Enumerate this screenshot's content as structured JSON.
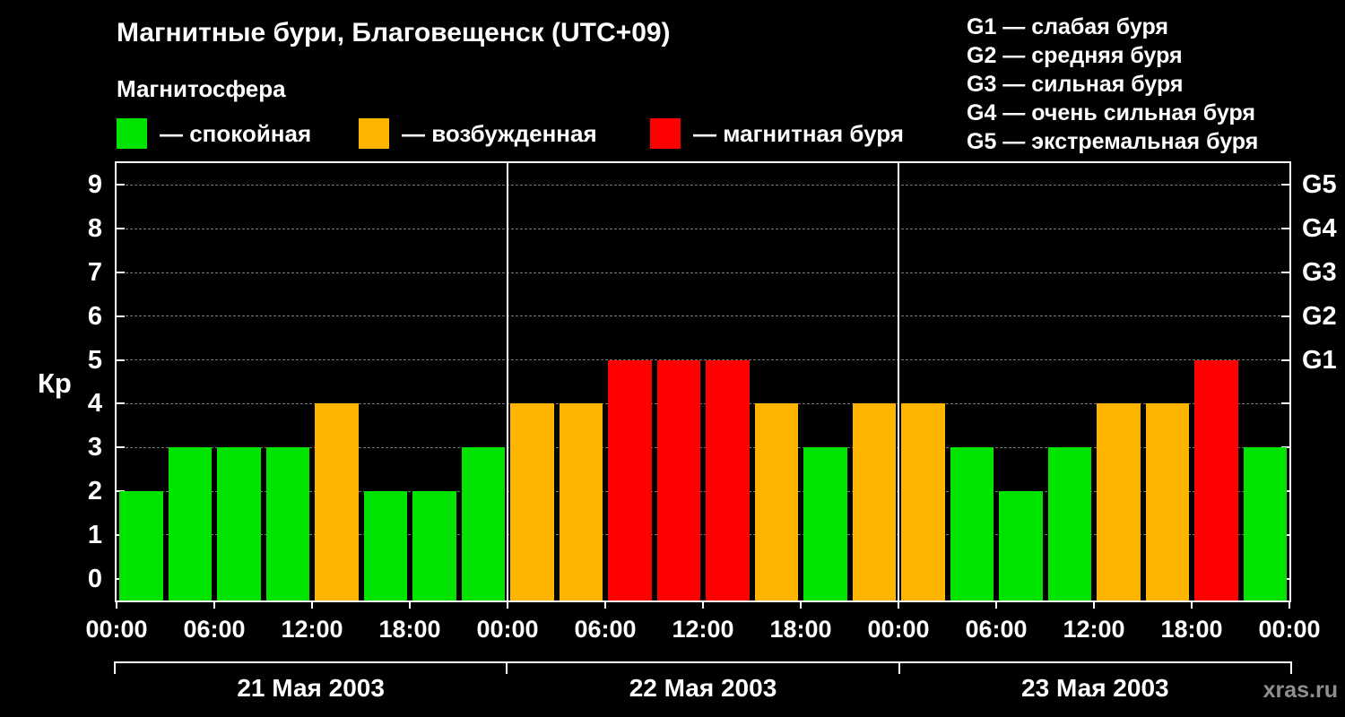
{
  "header": {
    "title": "Магнитные бури, Благовещенск (UTC+09)",
    "subtitle": "Магнитосфера"
  },
  "legend": {
    "items": [
      {
        "label": "— спокойная",
        "color": "#00e400"
      },
      {
        "label": "— возбужденная",
        "color": "#ffb400"
      },
      {
        "label": "— магнитная буря",
        "color": "#ff0000"
      }
    ]
  },
  "storm_scale": {
    "items": [
      "G1 — слабая буря",
      "G2 — средняя буря",
      "G3 — сильная буря",
      "G4 — очень сильная буря",
      "G5 — экстремальная буря"
    ]
  },
  "chart_data": {
    "type": "bar",
    "title": "Магнитные бури, Благовещенск (UTC+09)",
    "ylabel": "Кр",
    "ylim": [
      0,
      9
    ],
    "yticks": [
      0,
      1,
      2,
      3,
      4,
      5,
      6,
      7,
      8,
      9
    ],
    "right_axis": [
      {
        "label": "G1",
        "kp": 5
      },
      {
        "label": "G2",
        "kp": 6
      },
      {
        "label": "G3",
        "kp": 7
      },
      {
        "label": "G4",
        "kp": 8
      },
      {
        "label": "G5",
        "kp": 9
      }
    ],
    "x_tick_labels": [
      "00:00",
      "06:00",
      "12:00",
      "18:00",
      "00:00",
      "06:00",
      "12:00",
      "18:00",
      "00:00",
      "06:00",
      "12:00",
      "18:00",
      "00:00"
    ],
    "bar_interval_hours": 3,
    "days": [
      {
        "date": "21 Мая 2003",
        "values": [
          2,
          3,
          3,
          3,
          4,
          2,
          2,
          3
        ],
        "states": [
          "quiet",
          "quiet",
          "quiet",
          "quiet",
          "excited",
          "quiet",
          "quiet",
          "quiet"
        ]
      },
      {
        "date": "22 Мая 2003",
        "values": [
          4,
          4,
          5,
          5,
          5,
          4,
          3,
          4
        ],
        "states": [
          "excited",
          "excited",
          "storm",
          "storm",
          "storm",
          "excited",
          "quiet",
          "excited"
        ]
      },
      {
        "date": "23 Мая 2003",
        "values": [
          4,
          3,
          2,
          3,
          4,
          4,
          5,
          3
        ],
        "states": [
          "excited",
          "quiet",
          "quiet",
          "quiet",
          "excited",
          "excited",
          "storm",
          "quiet"
        ]
      }
    ],
    "state_colors": {
      "quiet": "#00e400",
      "excited": "#ffb400",
      "storm": "#ff0000"
    },
    "gridline_color": "#7a7a7a",
    "axis_color": "#ffffff",
    "legend_position": "top",
    "grid": true
  },
  "watermark": "xras.ru"
}
